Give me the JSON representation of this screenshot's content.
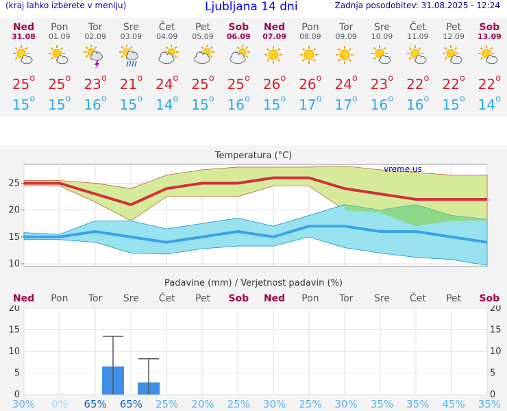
{
  "header": {
    "menu_hint": "(kraj lahko izberete v meniju)",
    "title": "Ljubljana 14 dni",
    "updated": "Zadnja posodobitev: 31.08.2025 - 12:24"
  },
  "days": [
    {
      "name": "Ned",
      "date": "31.08",
      "weekend": true,
      "icon": "partly-cloudy-icon",
      "tmax": "25",
      "tmin": "15"
    },
    {
      "name": "Pon",
      "date": "01.09",
      "weekend": false,
      "icon": "partly-cloudy-icon",
      "tmax": "25",
      "tmin": "15"
    },
    {
      "name": "Tor",
      "date": "02.09",
      "weekend": false,
      "icon": "thunderstorm-icon",
      "tmax": "23",
      "tmin": "16"
    },
    {
      "name": "Sre",
      "date": "03.09",
      "weekend": false,
      "icon": "rain-shower-icon",
      "tmax": "21",
      "tmin": "15"
    },
    {
      "name": "Čet",
      "date": "04.09",
      "weekend": false,
      "icon": "cloudy-sun-icon",
      "tmax": "24",
      "tmin": "14"
    },
    {
      "name": "Pet",
      "date": "05.09",
      "weekend": false,
      "icon": "cloudy-sun-icon",
      "tmax": "25",
      "tmin": "15"
    },
    {
      "name": "Sob",
      "date": "06.09",
      "weekend": true,
      "icon": "cloudy-sun-icon",
      "tmax": "25",
      "tmin": "16"
    },
    {
      "name": "Ned",
      "date": "07.09",
      "weekend": true,
      "icon": "sunny-icon",
      "tmax": "26",
      "tmin": "15"
    },
    {
      "name": "Pon",
      "date": "08.09",
      "weekend": false,
      "icon": "sunny-icon",
      "tmax": "26",
      "tmin": "17"
    },
    {
      "name": "Tor",
      "date": "09.09",
      "weekend": false,
      "icon": "sunny-icon",
      "tmax": "24",
      "tmin": "17"
    },
    {
      "name": "Sre",
      "date": "10.09",
      "weekend": false,
      "icon": "partly-cloudy-icon",
      "tmax": "23",
      "tmin": "16"
    },
    {
      "name": "Čet",
      "date": "11.09",
      "weekend": false,
      "icon": "partly-cloudy-icon",
      "tmax": "22",
      "tmin": "16"
    },
    {
      "name": "Pet",
      "date": "12.09",
      "weekend": false,
      "icon": "partly-cloudy-icon",
      "tmax": "22",
      "tmin": "15"
    },
    {
      "name": "Sob",
      "date": "13.09",
      "weekend": true,
      "icon": "partly-cloudy-icon",
      "tmax": "22",
      "tmin": "14"
    }
  ],
  "degree_symbol": "o",
  "colors": {
    "max": "#d31f2e",
    "min": "#35a8e0",
    "weekend": "#a00050",
    "bar": "#3f8fe6"
  },
  "temp_chart": {
    "title": "Temperatura (°C)",
    "watermark": "vreme.us",
    "chart_data": {
      "type": "line",
      "x": [
        "31.08",
        "01.09",
        "02.09",
        "03.09",
        "04.09",
        "05.09",
        "06.09",
        "07.09",
        "08.09",
        "09.09",
        "10.09",
        "11.09",
        "12.09",
        "13.09"
      ],
      "ylim": [
        9.5,
        28.5
      ],
      "yticks": [
        "10",
        "15",
        "20",
        "25"
      ],
      "series": [
        {
          "values": [
            25,
            25,
            23,
            21,
            24,
            25,
            25,
            26,
            26,
            24,
            23,
            22,
            22,
            22
          ]
        },
        {
          "values": [
            25.5,
            25.5,
            25,
            24,
            26.5,
            27.5,
            28,
            28,
            28,
            28.2,
            27.5,
            27,
            26.5,
            26.5
          ]
        },
        {
          "values": [
            24.5,
            24.5,
            21.5,
            18,
            22.5,
            22.5,
            22.5,
            24.5,
            24.5,
            20,
            19.5,
            17,
            18,
            18
          ]
        },
        {
          "values": [
            15,
            15,
            16,
            15,
            14,
            15,
            16,
            15,
            17,
            17,
            16,
            16,
            15,
            14
          ]
        },
        {
          "values": [
            15.8,
            15.5,
            18,
            18,
            16.5,
            17.5,
            18.5,
            17,
            19,
            21,
            20,
            21,
            19,
            18.3
          ]
        },
        {
          "values": [
            14.5,
            14.5,
            14,
            12,
            11.8,
            12.8,
            13.3,
            13.3,
            15,
            13,
            12,
            11.2,
            10.8,
            9.7
          ]
        }
      ]
    }
  },
  "precip_chart": {
    "title": "Padavine (mm) / Verjetnost padavin (%)",
    "chart_data": {
      "type": "bar",
      "categories": [
        "Ned",
        "Pon",
        "Tor",
        "Sre",
        "Čet",
        "Pet",
        "Sob",
        "Ned",
        "Pon",
        "Tor",
        "Sre",
        "Čet",
        "Pet",
        "Sob"
      ],
      "values": [
        0,
        0,
        6.5,
        2.8,
        0,
        0,
        0,
        0,
        0,
        0,
        0,
        0,
        0,
        0
      ],
      "error_high": [
        0,
        0,
        13.5,
        8.3,
        0,
        0,
        0,
        0,
        0,
        0,
        0,
        0,
        0,
        0
      ],
      "ylim": [
        0,
        20
      ],
      "yticks": [
        "0",
        "5",
        "10",
        "15",
        "20"
      ]
    },
    "probabilities": [
      "30%",
      "0%",
      "65%",
      "65%",
      "25%",
      "20%",
      "25%",
      "30%",
      "25%",
      "30%",
      "35%",
      "35%",
      "45%",
      "35%"
    ]
  }
}
